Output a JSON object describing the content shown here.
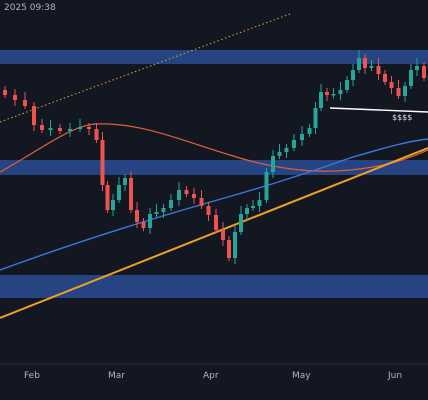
{
  "header": {
    "timestamp": "2025 09:38"
  },
  "annotation": "$$$$",
  "x_axis": {
    "labels": [
      "Feb",
      "Mar",
      "Apr",
      "May",
      "Jun"
    ]
  }
}
